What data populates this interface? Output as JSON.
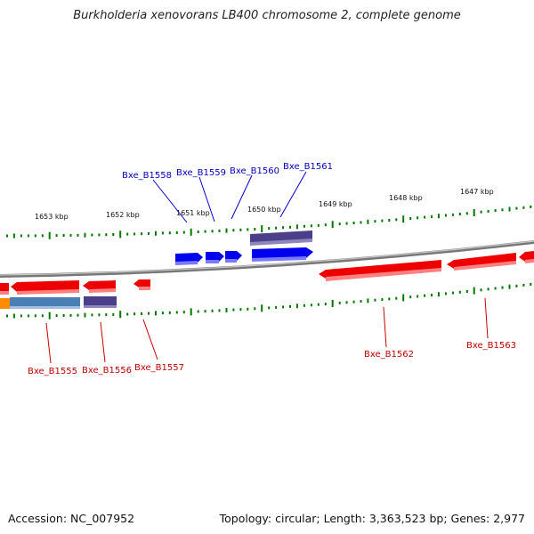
{
  "title": "Burkholderia xenovorans LB400 chromosome 2, complete genome",
  "footer": {
    "accession": "Accession: NC_007952",
    "topology": "Topology: circular; Length: 3,363,523 bp; Genes: 2,977"
  },
  "colors": {
    "forward_gene": "#0000ee",
    "reverse_gene": "#ee0000",
    "forward_feature": "#4b3f8a",
    "reverse_feature_blue": "#4a7fb5",
    "reverse_feature_purple": "#4b3f8a",
    "reverse_feature_orange": "#ff8c00",
    "backbone": "#8a8a8a",
    "tick": "#007700",
    "forward_label": "#0000bb",
    "reverse_label": "#c00000"
  },
  "kbp_labels": [
    "1653 kbp",
    "1652 kbp",
    "1651 kbp",
    "1650 kbp",
    "1649 kbp",
    "1648 kbp",
    "1647 kbp"
  ],
  "forward_gene_labels": [
    "Bxe_B1558",
    "Bxe_B1559",
    "Bxe_B1560",
    "Bxe_B1561"
  ],
  "reverse_gene_labels": [
    "Bxe_B1555",
    "Bxe_B1556",
    "Bxe_B1557",
    "Bxe_B1562",
    "Bxe_B1563"
  ]
}
